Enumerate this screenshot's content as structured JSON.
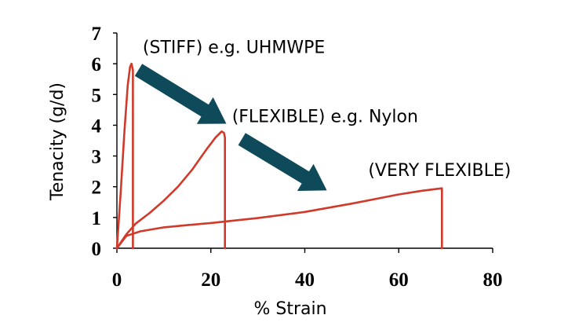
{
  "chart_data": {
    "type": "line",
    "xlabel": "% Strain",
    "ylabel": "Tenacity (g/d)",
    "xlim": [
      0,
      80
    ],
    "ylim": [
      0,
      7
    ],
    "x_ticks": [
      0,
      20,
      40,
      60,
      80
    ],
    "y_ticks": [
      0,
      1,
      2,
      3,
      4,
      5,
      6,
      7
    ],
    "grid": false,
    "line_color": "#d03a2a",
    "arrow_color": "#0f4a5a",
    "series": [
      {
        "x": [
          0,
          0.8,
          1.6,
          2.3,
          2.8,
          3.1,
          3.4,
          3.4
        ],
        "y": [
          0,
          1.8,
          3.8,
          5.3,
          5.9,
          6.0,
          5.8,
          0
        ]
      },
      {
        "x": [
          0,
          2,
          4,
          7,
          10,
          13,
          16,
          19,
          21,
          22.3,
          22.8,
          23.0,
          23.0
        ],
        "y": [
          0,
          0.45,
          0.8,
          1.15,
          1.55,
          2.0,
          2.55,
          3.2,
          3.6,
          3.8,
          3.75,
          3.6,
          0
        ]
      },
      {
        "x": [
          0,
          2,
          5,
          10,
          15,
          20,
          30,
          40,
          50,
          60,
          65,
          69.2,
          69.2
        ],
        "y": [
          0,
          0.4,
          0.55,
          0.68,
          0.75,
          0.82,
          0.98,
          1.18,
          1.45,
          1.75,
          1.87,
          1.95,
          0
        ]
      }
    ],
    "annotations": [
      {
        "text": "(STIFF) e.g. UHMWPE",
        "x": 5.5,
        "y": 6.35
      },
      {
        "text": "(FLEXIBLE) e.g. Nylon",
        "x": 24.5,
        "y": 4.1
      },
      {
        "text": "(VERY FLEXIBLE)",
        "x": 53.5,
        "y": 2.35
      }
    ],
    "arrows": [
      {
        "from": [
          4.6,
          5.8
        ],
        "to": [
          23.3,
          4.05
        ]
      },
      {
        "from": [
          26.6,
          3.55
        ],
        "to": [
          44.7,
          1.88
        ]
      }
    ]
  }
}
